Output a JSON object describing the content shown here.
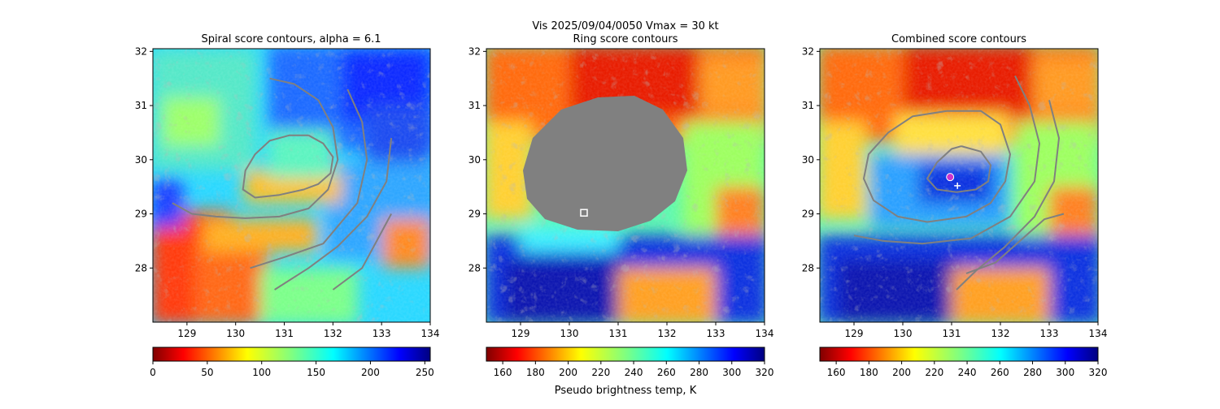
{
  "figure": {
    "suptitle": "Vis  2025/09/04/0050    Vmax = 30 kt",
    "colorbar_label": "Pseudo brightness temp, K"
  },
  "chart_data": [
    {
      "type": "heatmap",
      "title": "Spiral score contours, alpha =  6.1",
      "x_ticks": [
        129,
        130,
        131,
        132,
        133,
        134
      ],
      "y_ticks": [
        28,
        29,
        30,
        31,
        32
      ],
      "xlim": [
        128.3,
        134.0
      ],
      "ylim": [
        27.0,
        32.05
      ],
      "colorbar": {
        "ticks": [
          0,
          50,
          100,
          150,
          200,
          250
        ],
        "range": [
          0,
          255
        ],
        "colormap": "jet_r"
      },
      "contour_color": "#808080",
      "contours": [
        [
          [
            130.7,
            31.5
          ],
          [
            131.2,
            31.4
          ],
          [
            131.7,
            31.1
          ],
          [
            132.0,
            30.6
          ],
          [
            132.1,
            30.0
          ],
          [
            131.9,
            29.45
          ],
          [
            131.5,
            29.1
          ],
          [
            130.9,
            28.95
          ],
          [
            130.2,
            28.92
          ],
          [
            129.6,
            28.95
          ],
          [
            129.1,
            29.0
          ],
          [
            128.7,
            29.2
          ]
        ],
        [
          [
            132.3,
            31.3
          ],
          [
            132.6,
            30.7
          ],
          [
            132.7,
            30.0
          ],
          [
            132.5,
            29.2
          ],
          [
            131.8,
            28.45
          ],
          [
            131.0,
            28.2
          ],
          [
            130.3,
            28.0
          ]
        ],
        [
          [
            133.2,
            30.4
          ],
          [
            133.1,
            29.6
          ],
          [
            132.7,
            28.95
          ],
          [
            132.1,
            28.4
          ],
          [
            131.5,
            28.0
          ],
          [
            130.8,
            27.6
          ]
        ],
        [
          [
            133.2,
            29.0
          ],
          [
            132.9,
            28.5
          ],
          [
            132.6,
            28.0
          ],
          [
            132.0,
            27.6
          ]
        ],
        [
          [
            131.5,
            30.45
          ],
          [
            131.8,
            30.3
          ],
          [
            132.0,
            30.05
          ],
          [
            131.95,
            29.75
          ],
          [
            131.7,
            29.55
          ],
          [
            131.4,
            29.45
          ],
          [
            130.9,
            29.35
          ],
          [
            130.4,
            29.3
          ],
          [
            130.15,
            29.45
          ],
          [
            130.2,
            29.8
          ],
          [
            130.4,
            30.1
          ],
          [
            130.7,
            30.35
          ],
          [
            131.1,
            30.45
          ],
          [
            131.5,
            30.45
          ]
        ]
      ]
    },
    {
      "type": "heatmap",
      "title": "Ring score contours",
      "x_ticks": [
        129,
        130,
        131,
        132,
        133,
        134
      ],
      "y_ticks": [
        28,
        29,
        30,
        31,
        32
      ],
      "xlim": [
        128.3,
        134.0
      ],
      "ylim": [
        27.0,
        32.05
      ],
      "colorbar": {
        "ticks": [
          160,
          180,
          200,
          220,
          240,
          260,
          280,
          300,
          320
        ],
        "range": [
          150,
          320
        ],
        "colormap": "jet_r"
      },
      "ring_region_color": "#808080",
      "marker": {
        "shape": "square",
        "x": 130.3,
        "y": 29.02,
        "color": "#ffffff"
      }
    },
    {
      "type": "heatmap",
      "title": "Combined score contours",
      "x_ticks": [
        129,
        130,
        131,
        132,
        133,
        134
      ],
      "y_ticks": [
        28,
        29,
        30,
        31,
        32
      ],
      "xlim": [
        128.3,
        134.0
      ],
      "ylim": [
        27.0,
        32.05
      ],
      "colorbar": {
        "ticks": [
          160,
          180,
          200,
          220,
          240,
          260,
          280,
          300,
          320
        ],
        "range": [
          150,
          320
        ],
        "colormap": "jet_r"
      },
      "contour_color": "#808080",
      "contours": [
        [
          [
            131.2,
            30.25
          ],
          [
            131.6,
            30.15
          ],
          [
            131.8,
            29.9
          ],
          [
            131.75,
            29.6
          ],
          [
            131.5,
            29.45
          ],
          [
            131.1,
            29.4
          ],
          [
            130.7,
            29.45
          ],
          [
            130.5,
            29.65
          ],
          [
            130.7,
            29.95
          ],
          [
            131.0,
            30.2
          ],
          [
            131.2,
            30.25
          ]
        ],
        [
          [
            130.9,
            30.9
          ],
          [
            131.6,
            30.9
          ],
          [
            132.0,
            30.65
          ],
          [
            132.2,
            30.1
          ],
          [
            132.1,
            29.6
          ],
          [
            131.8,
            29.2
          ],
          [
            131.3,
            28.95
          ],
          [
            130.5,
            28.85
          ],
          [
            129.9,
            28.95
          ],
          [
            129.4,
            29.25
          ],
          [
            129.2,
            29.65
          ],
          [
            129.3,
            30.1
          ],
          [
            129.7,
            30.5
          ],
          [
            130.2,
            30.8
          ],
          [
            130.9,
            30.9
          ]
        ],
        [
          [
            132.3,
            31.55
          ],
          [
            132.6,
            31.0
          ],
          [
            132.8,
            30.3
          ],
          [
            132.7,
            29.6
          ],
          [
            132.2,
            28.95
          ],
          [
            131.4,
            28.55
          ],
          [
            130.4,
            28.45
          ],
          [
            129.6,
            28.5
          ],
          [
            129.0,
            28.6
          ]
        ],
        [
          [
            133.0,
            31.1
          ],
          [
            133.2,
            30.4
          ],
          [
            133.1,
            29.6
          ],
          [
            132.7,
            28.95
          ],
          [
            132.1,
            28.4
          ],
          [
            131.5,
            27.95
          ],
          [
            131.1,
            27.6
          ]
        ],
        [
          [
            133.3,
            29.0
          ],
          [
            132.9,
            28.9
          ],
          [
            132.4,
            28.5
          ],
          [
            131.9,
            28.1
          ],
          [
            131.3,
            27.9
          ]
        ]
      ],
      "markers": [
        {
          "shape": "circle",
          "x": 130.97,
          "y": 29.68,
          "color": "#cc33cc"
        },
        {
          "shape": "plus",
          "x": 131.12,
          "y": 29.52,
          "color": "#ffffff"
        }
      ]
    }
  ]
}
